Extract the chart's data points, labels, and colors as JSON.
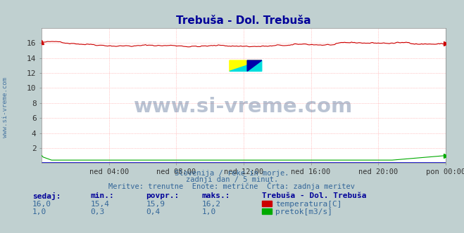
{
  "title": "Trebuša - Dol. Trebuša",
  "title_color": "#000099",
  "bg_color": "#c0d0d0",
  "plot_bg_color": "#ffffff",
  "grid_color": "#ff9999",
  "xlabel_ticks": [
    "ned 04:00",
    "ned 08:00",
    "ned 12:00",
    "ned 16:00",
    "ned 20:00",
    "pon 00:00"
  ],
  "ylim": [
    0,
    18
  ],
  "yticks": [
    2,
    4,
    6,
    8,
    10,
    12,
    14,
    16
  ],
  "xlim": [
    0,
    288
  ],
  "xtick_positions": [
    48,
    96,
    144,
    192,
    240,
    288
  ],
  "temp_color": "#cc0000",
  "flow_color": "#00aa00",
  "height_color": "#0000cc",
  "watermark_text": "www.si-vreme.com",
  "watermark_color": "#1a3a6e",
  "subtitle_lines": [
    "Slovenija / reke in morje.",
    "zadnji dan / 5 minut.",
    "Meritve: trenutne  Enote: metrične  Črta: zadnja meritev"
  ],
  "subtitle_color": "#336699",
  "footer_header_color": "#000099",
  "footer_label_color": "#336699",
  "footer_cols": [
    "sedaj:",
    "min.:",
    "povpr.:",
    "maks.:"
  ],
  "station_name": "Trebuša - Dol. Trebuša",
  "temp_stats": {
    "sedaj": "16,0",
    "min": "15,4",
    "povpr": "15,9",
    "maks": "16,2"
  },
  "flow_stats": {
    "sedaj": "1,0",
    "min": "0,3",
    "povpr": "0,4",
    "maks": "1,0"
  },
  "temp_min": 15.4,
  "temp_max": 16.2,
  "flow_min": 0.3,
  "flow_max": 1.0,
  "n_points": 289
}
